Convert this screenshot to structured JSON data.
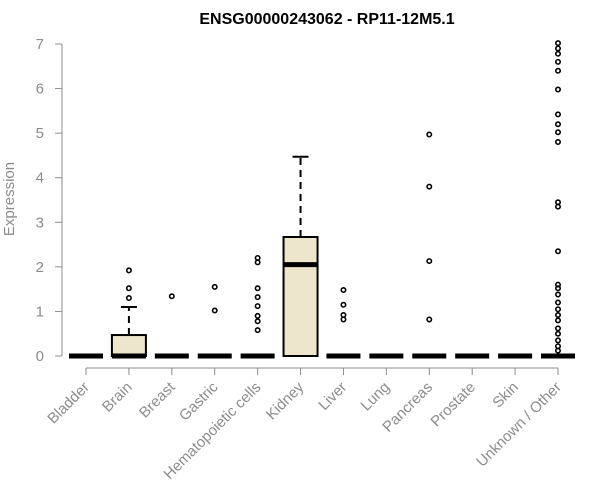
{
  "chart_data": {
    "type": "box",
    "title": "ENSG00000243062 - RP11-12M5.1",
    "xlabel": "",
    "ylabel": "Expression",
    "ylim": [
      0,
      7
    ],
    "yticks": [
      0,
      1,
      2,
      3,
      4,
      5,
      6,
      7
    ],
    "grid": false,
    "legend": "none",
    "colors": {
      "box_fill": "#ede6cc",
      "axis": "#8c8c8c",
      "text": "#8c8c8c",
      "title": "#000000",
      "stroke": "#000000"
    },
    "categories": [
      "Bladder",
      "Brain",
      "Breast",
      "Gastric",
      "Hematopoietic cells",
      "Kidney",
      "Liver",
      "Lung",
      "Pancreas",
      "Prostate",
      "Skin",
      "Unknown / Other"
    ],
    "boxes": [
      {
        "category": "Bladder",
        "q1": 0,
        "median": 0,
        "q3": 0,
        "whisker_low": 0,
        "whisker_high": 0,
        "outliers": []
      },
      {
        "category": "Brain",
        "q1": 0,
        "median": 0,
        "q3": 0.47,
        "whisker_low": 0,
        "whisker_high": 1.1,
        "outliers": [
          1.3,
          1.52,
          1.92
        ]
      },
      {
        "category": "Breast",
        "q1": 0,
        "median": 0,
        "q3": 0,
        "whisker_low": 0,
        "whisker_high": 0,
        "outliers": [
          1.34
        ]
      },
      {
        "category": "Gastric",
        "q1": 0,
        "median": 0,
        "q3": 0,
        "whisker_low": 0,
        "whisker_high": 0,
        "outliers": [
          1.02,
          1.55
        ]
      },
      {
        "category": "Hematopoietic cells",
        "q1": 0,
        "median": 0,
        "q3": 0,
        "whisker_low": 0,
        "whisker_high": 0,
        "outliers": [
          0.58,
          0.78,
          0.9,
          1.12,
          1.32,
          1.52,
          2.1,
          2.2
        ]
      },
      {
        "category": "Kidney",
        "q1": 0,
        "median": 2.05,
        "q3": 2.67,
        "whisker_low": 0,
        "whisker_high": 4.47,
        "outliers": []
      },
      {
        "category": "Liver",
        "q1": 0,
        "median": 0,
        "q3": 0,
        "whisker_low": 0,
        "whisker_high": 0,
        "outliers": [
          0.82,
          0.92,
          1.15,
          1.48
        ]
      },
      {
        "category": "Lung",
        "q1": 0,
        "median": 0,
        "q3": 0,
        "whisker_low": 0,
        "whisker_high": 0,
        "outliers": []
      },
      {
        "category": "Pancreas",
        "q1": 0,
        "median": 0,
        "q3": 0,
        "whisker_low": 0,
        "whisker_high": 0,
        "outliers": [
          0.82,
          2.13,
          3.8,
          4.97
        ]
      },
      {
        "category": "Prostate",
        "q1": 0,
        "median": 0,
        "q3": 0,
        "whisker_low": 0,
        "whisker_high": 0,
        "outliers": []
      },
      {
        "category": "Skin",
        "q1": 0,
        "median": 0,
        "q3": 0,
        "whisker_low": 0,
        "whisker_high": 0,
        "outliers": []
      },
      {
        "category": "Unknown / Other",
        "q1": 0,
        "median": 0,
        "q3": 0,
        "whisker_low": 0,
        "whisker_high": 0,
        "outliers": [
          0.12,
          0.22,
          0.35,
          0.5,
          0.62,
          0.8,
          0.92,
          1.05,
          1.2,
          1.38,
          1.52,
          1.6,
          2.35,
          3.35,
          3.45,
          4.8,
          5.02,
          5.2,
          5.42,
          5.98,
          6.4,
          6.6,
          6.78,
          6.9,
          7.02
        ]
      }
    ]
  }
}
